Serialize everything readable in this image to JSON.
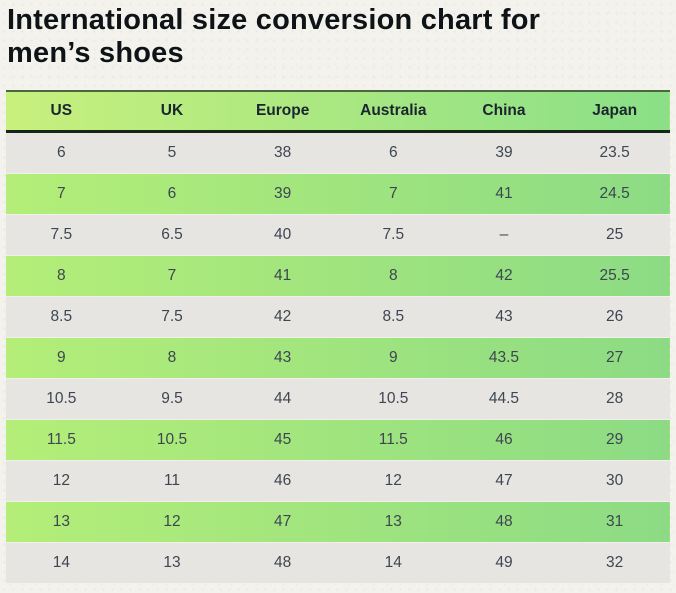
{
  "title": "International size conversion chart for men’s shoes",
  "chart_data": {
    "type": "table",
    "title": "International size conversion chart for men’s shoes",
    "columns": [
      "US",
      "UK",
      "Europe",
      "Australia",
      "China",
      "Japan"
    ],
    "rows": [
      [
        "6",
        "5",
        "38",
        "6",
        "39",
        "23.5"
      ],
      [
        "7",
        "6",
        "39",
        "7",
        "41",
        "24.5"
      ],
      [
        "7.5",
        "6.5",
        "40",
        "7.5",
        "–",
        "25"
      ],
      [
        "8",
        "7",
        "41",
        "8",
        "42",
        "25.5"
      ],
      [
        "8.5",
        "7.5",
        "42",
        "8.5",
        "43",
        "26"
      ],
      [
        "9",
        "8",
        "43",
        "9",
        "43.5",
        "27"
      ],
      [
        "10.5",
        "9.5",
        "44",
        "10.5",
        "44.5",
        "28"
      ],
      [
        "11.5",
        "10.5",
        "45",
        "11.5",
        "46",
        "29"
      ],
      [
        "12",
        "11",
        "46",
        "12",
        "47",
        "30"
      ],
      [
        "13",
        "12",
        "47",
        "13",
        "48",
        "31"
      ],
      [
        "14",
        "13",
        "48",
        "14",
        "49",
        "32"
      ]
    ],
    "layout": {
      "header_position": "top",
      "row_striping": "alternating gray / green-gradient, starting gray",
      "cell_alignment": "center"
    }
  },
  "colors": {
    "page_bg": "#f4f2ec",
    "title_color": "#0e1317",
    "header_grad_start": "#c8f07d",
    "header_grad_end": "#8adf87",
    "table_top_border": "#4d6540",
    "header_underline": "#162616",
    "header_text": "#1b2530",
    "row_green_start": "#b4ee78",
    "row_green_end": "#8cdb84",
    "row_gray": "#e7e5e2",
    "cell_text": "#3d4651",
    "row_separator": "#f2f0ea"
  }
}
